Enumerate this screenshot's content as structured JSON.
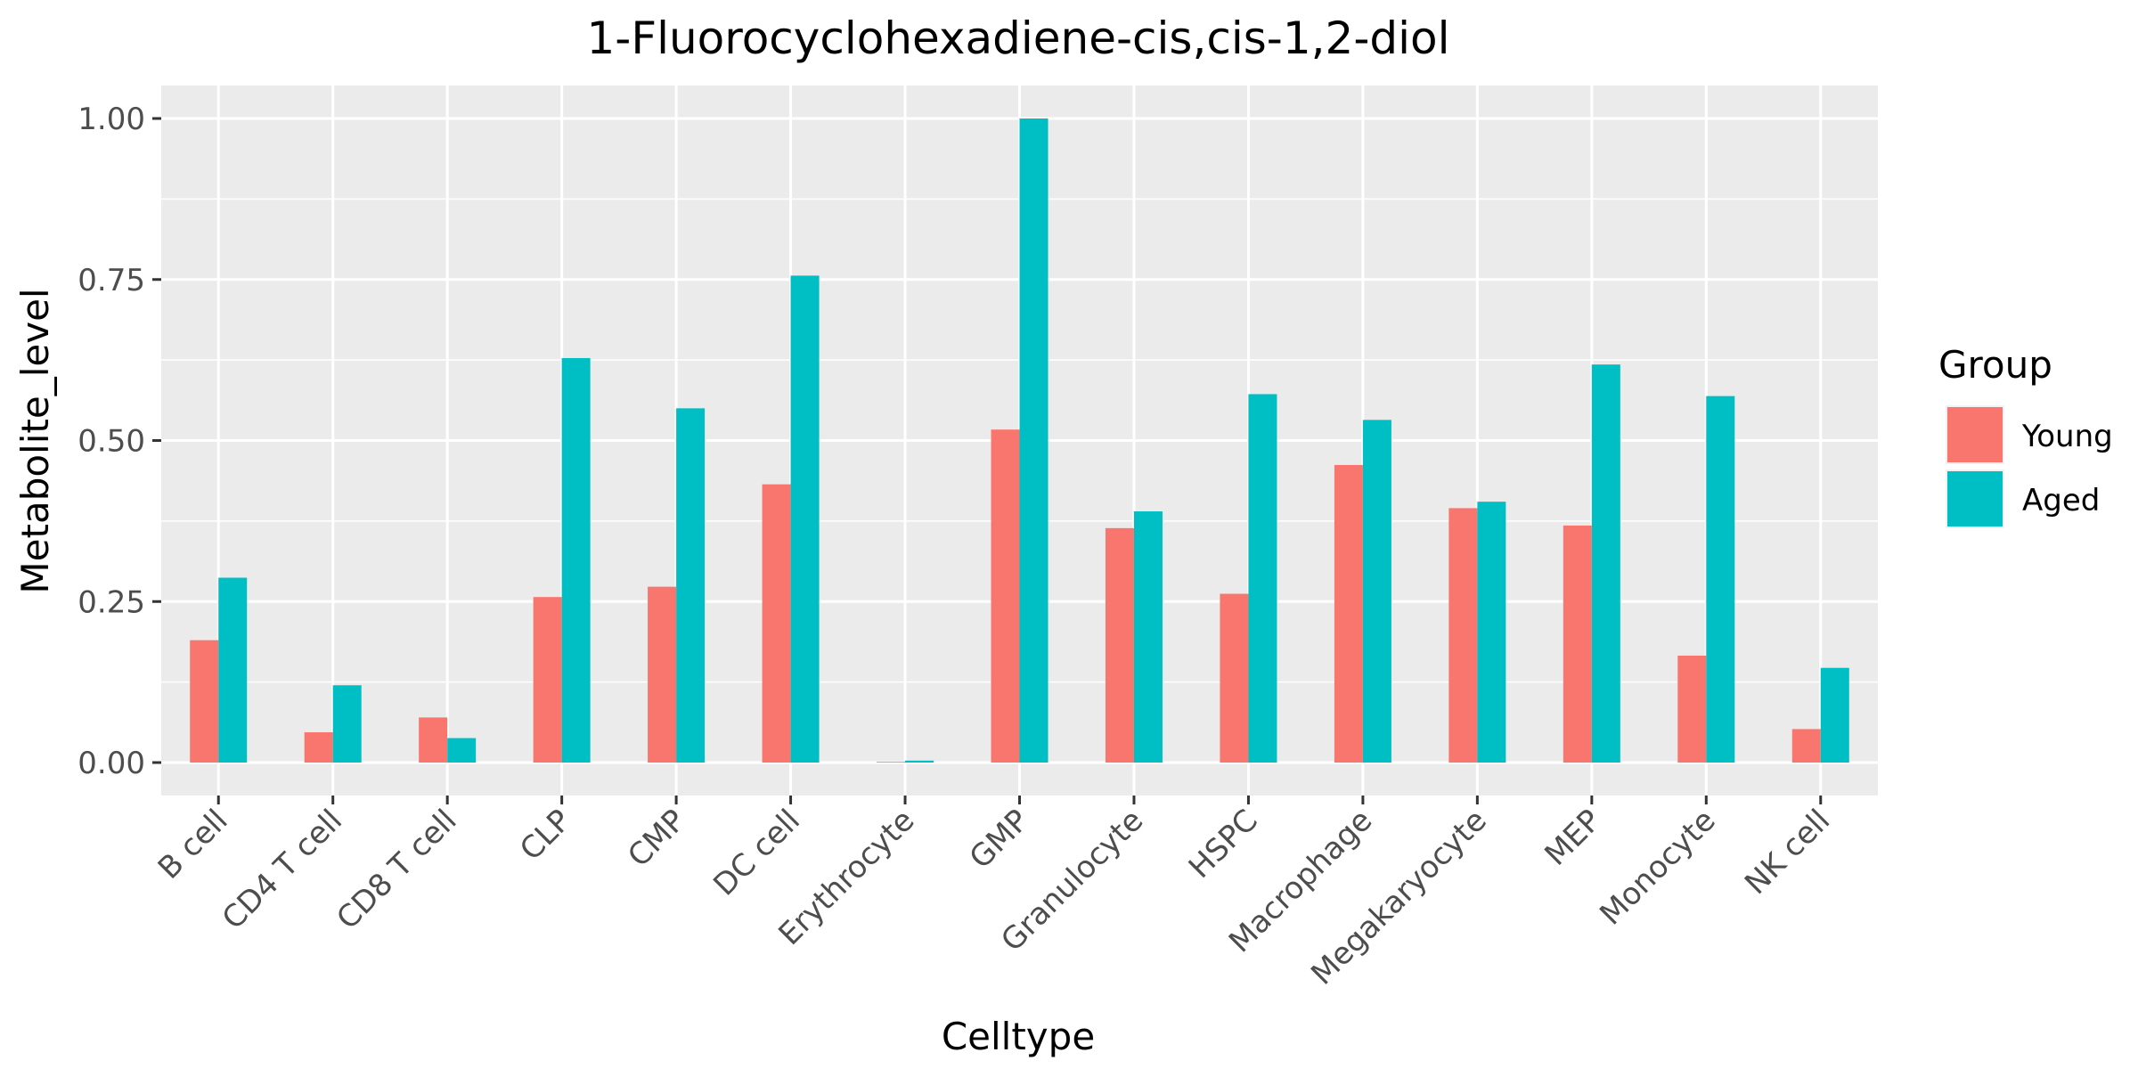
{
  "chart_data": {
    "type": "bar",
    "title": "1-Fluorocyclohexadiene-cis,cis-1,2-diol",
    "xlabel": "Celltype",
    "ylabel": "Metabolite_level",
    "categories": [
      "B cell",
      "CD4 T cell",
      "CD8 T cell",
      "CLP",
      "CMP",
      "DC cell",
      "Erythrocyte",
      "GMP",
      "Granulocyte",
      "HSPC",
      "Macrophage",
      "Megakaryocyte",
      "MEP",
      "Monocyte",
      "NK cell"
    ],
    "series": [
      {
        "name": "Young",
        "color": "#F8766D",
        "values": [
          0.19,
          0.047,
          0.07,
          0.257,
          0.273,
          0.432,
          0.0,
          0.517,
          0.364,
          0.262,
          0.462,
          0.395,
          0.368,
          0.166,
          0.052
        ]
      },
      {
        "name": "Aged",
        "color": "#00BFC4",
        "values": [
          0.287,
          0.12,
          0.038,
          0.628,
          0.55,
          0.756,
          0.003,
          1.0,
          0.39,
          0.572,
          0.532,
          0.405,
          0.618,
          0.569,
          0.147
        ]
      }
    ],
    "ylim": [
      -0.05,
      1.05
    ],
    "yticks": [
      0.0,
      0.25,
      0.5,
      0.75,
      1.0
    ],
    "ytick_labels": [
      "0.00",
      "0.25",
      "0.50",
      "0.75",
      "1.00"
    ],
    "grid": true,
    "legend": {
      "title": "Group",
      "position": "right"
    },
    "panel_background": "#EBEBEB",
    "grid_color": "#FFFFFF"
  }
}
